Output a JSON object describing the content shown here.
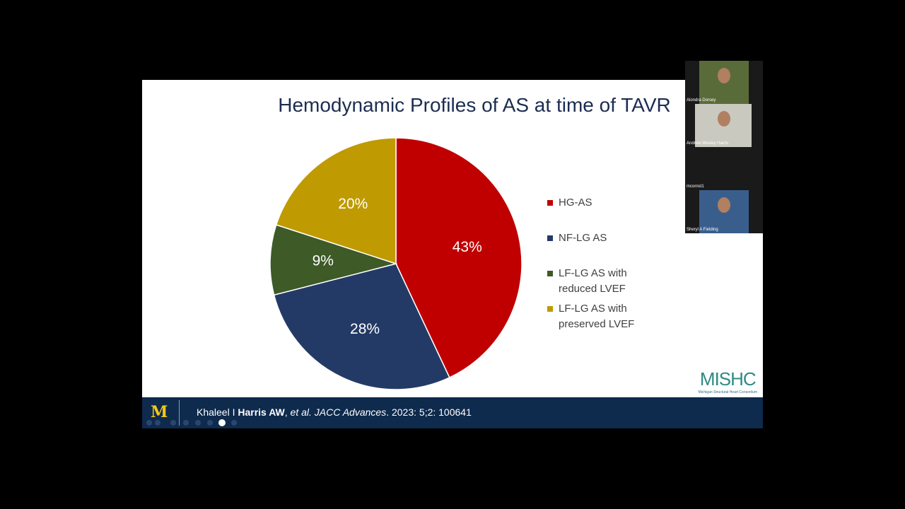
{
  "chart_data": {
    "type": "pie",
    "title": "Hemodynamic Profiles of AS at time of TAVR",
    "categories": [
      "HG-AS",
      "NF-LG AS",
      "LF-LG AS with reduced LVEF",
      "LF-LG AS with preserved LVEF"
    ],
    "values": [
      43,
      28,
      9,
      20
    ],
    "value_labels": [
      "43%",
      "28%",
      "9%",
      "20%"
    ],
    "colors": [
      "#c00000",
      "#243a66",
      "#3d5a27",
      "#bf9a00"
    ],
    "legend": "right"
  },
  "logo": {
    "name": "MISHC",
    "subtitle": "Michigan Structural Heart Consortium"
  },
  "footer": {
    "logo": "M",
    "citation": [
      "Khaleel I ",
      "Harris AW",
      ", ",
      "et al. JACC Advances",
      ". 2023: 5;2: 100641"
    ]
  },
  "participants": [
    "Alondra Dorsey",
    "Andrew Wesley Harris",
    "mcornst1",
    "Sheryl A Fielding"
  ]
}
